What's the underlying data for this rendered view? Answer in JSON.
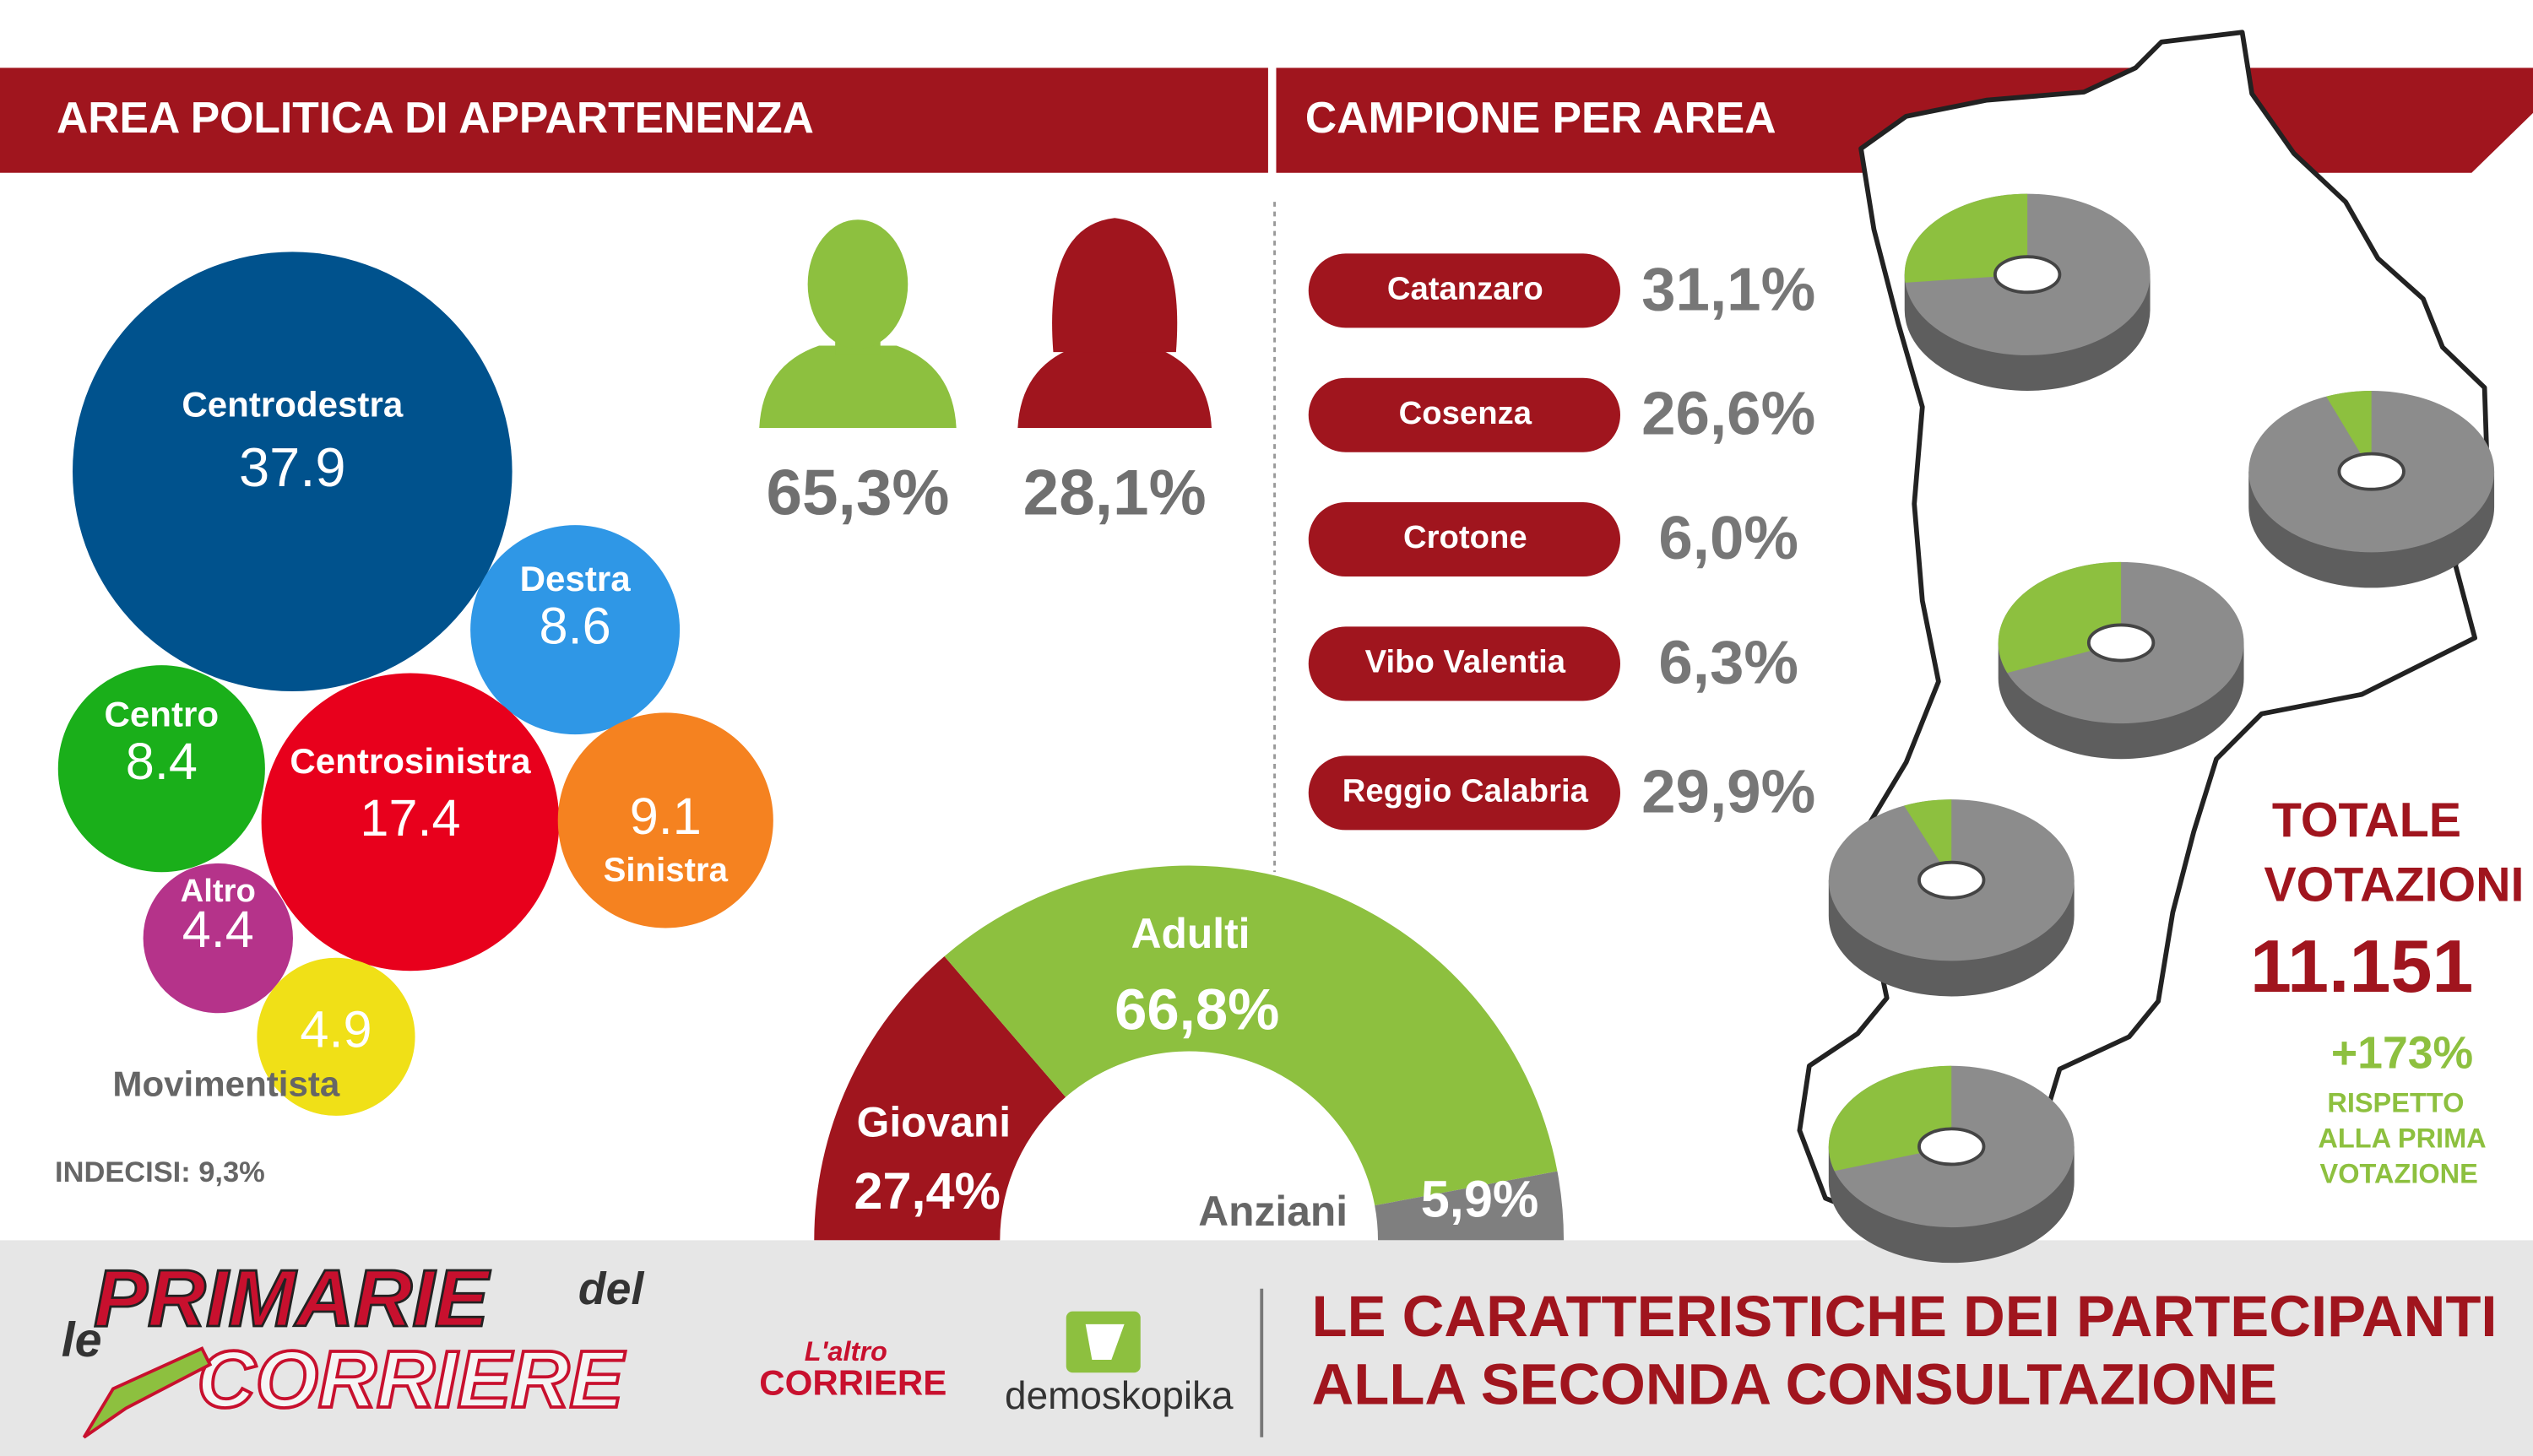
{
  "chart_data": [
    {
      "type": "bubble",
      "title": "AREA POLITICA DI APPARTENENZA",
      "categories": [
        "Centrodestra",
        "Destra",
        "Centro",
        "Centrosinistra",
        "Sinistra",
        "Altro",
        "Movimentista"
      ],
      "values": [
        37.9,
        8.6,
        8.4,
        17.4,
        9.1,
        4.4,
        4.9
      ],
      "colors": [
        "#00528d",
        "#2f97e6",
        "#1aaf1a",
        "#e8001c",
        "#f58220",
        "#b5338a",
        "#f0e017"
      ],
      "annotation": "INDECISI: 9,3%"
    },
    {
      "type": "pictogram",
      "categories": [
        null,
        null
      ],
      "values": [
        65.3,
        28.1
      ],
      "value_labels": [
        "65,3%",
        "28,1%"
      ],
      "colors": [
        "#8dc03f",
        "#a0151e"
      ]
    },
    {
      "type": "semi-donut",
      "categories": [
        "Giovani",
        "Adulti",
        "Anziani"
      ],
      "values": [
        27.4,
        66.8,
        5.9
      ],
      "value_labels": [
        "27,4%",
        "66,8%",
        "5,9%"
      ],
      "colors": [
        "#a0151e",
        "#8dc03f",
        "#7f7f7f"
      ]
    },
    {
      "type": "pie-map",
      "title": "CAMPIONE PER AREA",
      "categories": [
        "Catanzaro",
        "Cosenza",
        "Crotone",
        "Vibo Valentia",
        "Reggio Calabria"
      ],
      "values": [
        31.1,
        26.6,
        6.0,
        6.3,
        29.9
      ],
      "value_labels": [
        "31,1%",
        "26,6%",
        "6,0%",
        "6,3%",
        "29,9%"
      ],
      "color": "#8dc03f",
      "rest_color": "#8c8c8c"
    }
  ],
  "totals": {
    "title": [
      "TOTALE",
      "VOTAZIONI"
    ],
    "value": "11.151",
    "change": "+173%",
    "note": [
      "RISPETTO",
      "ALLA PRIMA",
      "VOTAZIONE"
    ]
  },
  "footer": {
    "logo": [
      "le",
      "PRIMARIE",
      "del",
      "CORRIERE"
    ],
    "partner": [
      "L'altro",
      "CORRIERE"
    ],
    "sponsor": "demoskopika",
    "title": [
      "LE CARATTERISTICHE DEI PARTECIPANTI",
      "ALLA SECONDA CONSULTAZIONE"
    ]
  }
}
